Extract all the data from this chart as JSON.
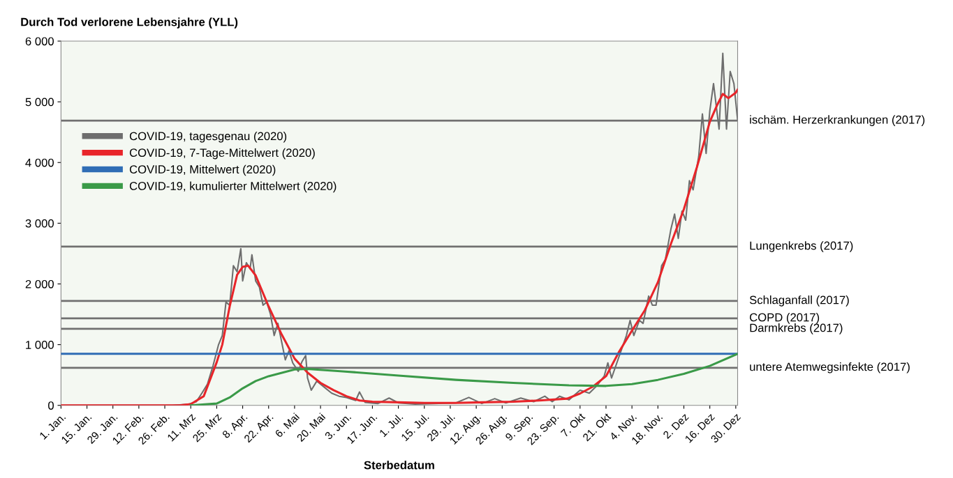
{
  "chart_data": {
    "type": "line",
    "ylabel": "Durch Tod verlorene Lebensjahre (YLL)",
    "xlabel": "Sterbedatum",
    "ylim": [
      0,
      6000
    ],
    "yticks": [
      {
        "value": 0,
        "label": "0"
      },
      {
        "value": 1000,
        "label": "1 000"
      },
      {
        "value": 2000,
        "label": "2 000"
      },
      {
        "value": 3000,
        "label": "3 000"
      },
      {
        "value": 4000,
        "label": "4 000"
      },
      {
        "value": 5000,
        "label": "5 000"
      },
      {
        "value": 6000,
        "label": "6 000"
      }
    ],
    "xlim": [
      "2020-01-01",
      "2020-12-31"
    ],
    "xticks": [
      {
        "value": "2020-01-01",
        "label": "1. Jan."
      },
      {
        "value": "2020-01-15",
        "label": "15. Jan."
      },
      {
        "value": "2020-01-29",
        "label": "29. Jan."
      },
      {
        "value": "2020-02-12",
        "label": "12. Feb."
      },
      {
        "value": "2020-02-26",
        "label": "26. Feb."
      },
      {
        "value": "2020-03-11",
        "label": "11. Mrz"
      },
      {
        "value": "2020-03-25",
        "label": "25. Mrz"
      },
      {
        "value": "2020-04-08",
        "label": "8. Apr."
      },
      {
        "value": "2020-04-22",
        "label": "22. Apr."
      },
      {
        "value": "2020-05-06",
        "label": "6. Mai"
      },
      {
        "value": "2020-05-20",
        "label": "20. Mai"
      },
      {
        "value": "2020-06-03",
        "label": "3. Jun."
      },
      {
        "value": "2020-06-17",
        "label": "17. Jun."
      },
      {
        "value": "2020-07-01",
        "label": "1. Jul."
      },
      {
        "value": "2020-07-15",
        "label": "15. Jul."
      },
      {
        "value": "2020-07-29",
        "label": "29. Jul."
      },
      {
        "value": "2020-08-12",
        "label": "12. Aug."
      },
      {
        "value": "2020-08-26",
        "label": "26. Aug."
      },
      {
        "value": "2020-09-09",
        "label": "9. Sep."
      },
      {
        "value": "2020-09-23",
        "label": "23. Sep."
      },
      {
        "value": "2020-10-07",
        "label": "7. Okt"
      },
      {
        "value": "2020-10-21",
        "label": "21. Okt"
      },
      {
        "value": "2020-11-04",
        "label": "4. Nov."
      },
      {
        "value": "2020-11-18",
        "label": "18. Nov."
      },
      {
        "value": "2020-12-02",
        "label": "2. Dez"
      },
      {
        "value": "2020-12-16",
        "label": "16. Dez"
      },
      {
        "value": "2020-12-30",
        "label": "30. Dez"
      }
    ],
    "grid": false,
    "legend": "top left",
    "series": [
      {
        "name": "COVID-19, tagesgenau (2020)",
        "color": "#6e6e6e",
        "x": [
          "2020-01-01",
          "2020-03-01",
          "2020-03-10",
          "2020-03-14",
          "2020-03-17",
          "2020-03-20",
          "2020-03-23",
          "2020-03-26",
          "2020-03-28",
          "2020-03-30",
          "2020-04-01",
          "2020-04-03",
          "2020-04-05",
          "2020-04-07",
          "2020-04-08",
          "2020-04-10",
          "2020-04-12",
          "2020-04-13",
          "2020-04-15",
          "2020-04-17",
          "2020-04-19",
          "2020-04-21",
          "2020-04-23",
          "2020-04-25",
          "2020-04-27",
          "2020-04-29",
          "2020-05-01",
          "2020-05-03",
          "2020-05-05",
          "2020-05-08",
          "2020-05-10",
          "2020-05-12",
          "2020-05-13",
          "2020-05-15",
          "2020-05-18",
          "2020-05-22",
          "2020-05-26",
          "2020-05-30",
          "2020-06-03",
          "2020-06-08",
          "2020-06-10",
          "2020-06-13",
          "2020-06-20",
          "2020-06-26",
          "2020-07-01",
          "2020-07-10",
          "2020-07-20",
          "2020-08-01",
          "2020-08-08",
          "2020-08-15",
          "2020-08-22",
          "2020-08-28",
          "2020-09-05",
          "2020-09-12",
          "2020-09-18",
          "2020-09-22",
          "2020-09-26",
          "2020-10-01",
          "2020-10-07",
          "2020-10-12",
          "2020-10-16",
          "2020-10-20",
          "2020-10-22",
          "2020-10-24",
          "2020-10-28",
          "2020-11-01",
          "2020-11-03",
          "2020-11-05",
          "2020-11-08",
          "2020-11-10",
          "2020-11-13",
          "2020-11-15",
          "2020-11-17",
          "2020-11-20",
          "2020-11-22",
          "2020-11-25",
          "2020-11-27",
          "2020-11-29",
          "2020-12-01",
          "2020-12-03",
          "2020-12-05",
          "2020-12-07",
          "2020-12-10",
          "2020-12-12",
          "2020-12-14",
          "2020-12-16",
          "2020-12-18",
          "2020-12-20",
          "2020-12-21",
          "2020-12-23",
          "2020-12-25",
          "2020-12-27",
          "2020-12-29",
          "2020-12-31"
        ],
        "values": [
          0,
          0,
          20,
          60,
          200,
          350,
          650,
          1000,
          1150,
          1700,
          1650,
          2300,
          2200,
          2580,
          2050,
          2350,
          2250,
          2480,
          2050,
          1950,
          1650,
          1700,
          1500,
          1150,
          1350,
          1050,
          750,
          900,
          700,
          560,
          720,
          820,
          450,
          250,
          400,
          300,
          200,
          150,
          130,
          80,
          220,
          50,
          30,
          120,
          40,
          20,
          30,
          40,
          130,
          30,
          110,
          40,
          120,
          60,
          150,
          60,
          150,
          90,
          250,
          200,
          320,
          480,
          700,
          450,
          800,
          1150,
          1400,
          1150,
          1400,
          1350,
          1800,
          1650,
          1650,
          2300,
          2400,
          2900,
          3150,
          2750,
          3200,
          3050,
          3700,
          3550,
          4100,
          4800,
          4150,
          4850,
          5300,
          4800,
          4550,
          5800,
          4550,
          5500,
          5300,
          4700
        ]
      },
      {
        "name": "COVID-19, 7-Tage-Mittelwert (2020)",
        "color": "#e8252a",
        "x": [
          "2020-01-01",
          "2020-03-05",
          "2020-03-11",
          "2020-03-18",
          "2020-03-25",
          "2020-03-28",
          "2020-04-01",
          "2020-04-05",
          "2020-04-08",
          "2020-04-11",
          "2020-04-15",
          "2020-04-22",
          "2020-04-29",
          "2020-05-06",
          "2020-05-13",
          "2020-05-20",
          "2020-05-27",
          "2020-06-03",
          "2020-06-10",
          "2020-06-17",
          "2020-07-01",
          "2020-07-15",
          "2020-08-01",
          "2020-08-15",
          "2020-09-01",
          "2020-09-15",
          "2020-09-30",
          "2020-10-07",
          "2020-10-14",
          "2020-10-21",
          "2020-10-28",
          "2020-11-04",
          "2020-11-11",
          "2020-11-18",
          "2020-11-25",
          "2020-12-02",
          "2020-12-09",
          "2020-12-16",
          "2020-12-20",
          "2020-12-23",
          "2020-12-26",
          "2020-12-30",
          "2020-12-31"
        ],
        "values": [
          0,
          0,
          20,
          150,
          710,
          1000,
          1630,
          2150,
          2280,
          2300,
          2140,
          1630,
          1170,
          770,
          540,
          370,
          250,
          150,
          80,
          60,
          50,
          40,
          40,
          50,
          60,
          80,
          110,
          195,
          310,
          480,
          880,
          1230,
          1570,
          2030,
          2660,
          3230,
          3920,
          4670,
          4950,
          5130,
          5060,
          5150,
          5200
        ]
      },
      {
        "name": "COVID-19, Mittelwert (2020)",
        "color": "#2f6db5",
        "x": [
          "2020-01-01",
          "2020-12-31"
        ],
        "values": [
          849,
          849
        ]
      },
      {
        "name": "COVID-19, kumulierter Mittelwert (2020)",
        "color": "#3a9a48",
        "x": [
          "2020-03-11",
          "2020-03-25",
          "2020-04-01",
          "2020-04-08",
          "2020-04-15",
          "2020-04-22",
          "2020-05-06",
          "2020-05-13",
          "2020-06-01",
          "2020-07-01",
          "2020-08-01",
          "2020-09-01",
          "2020-10-01",
          "2020-10-21",
          "2020-11-04",
          "2020-11-18",
          "2020-12-02",
          "2020-12-16",
          "2020-12-31"
        ],
        "values": [
          0,
          30,
          130,
          280,
          400,
          480,
          590,
          600,
          560,
          490,
          420,
          370,
          330,
          320,
          350,
          420,
          520,
          650,
          849
        ]
      }
    ],
    "ref_lines": [
      {
        "axis": "y",
        "value": 4690,
        "label": "ischäm. Herzerkrankungen (2017)",
        "color": "#707070"
      },
      {
        "axis": "y",
        "value": 2615,
        "label": "Lungenkrebs (2017)",
        "color": "#707070"
      },
      {
        "axis": "y",
        "value": 1720,
        "label": "Schlaganfall (2017)",
        "color": "#707070"
      },
      {
        "axis": "y",
        "value": 1433,
        "label": "COPD (2017)",
        "color": "#707070"
      },
      {
        "axis": "y",
        "value": 1261,
        "label": "Darmkrebs (2017)",
        "color": "#707070"
      },
      {
        "axis": "y",
        "value": 619,
        "label": "untere Atemwegsinfekte (2017)",
        "color": "#707070"
      }
    ]
  }
}
